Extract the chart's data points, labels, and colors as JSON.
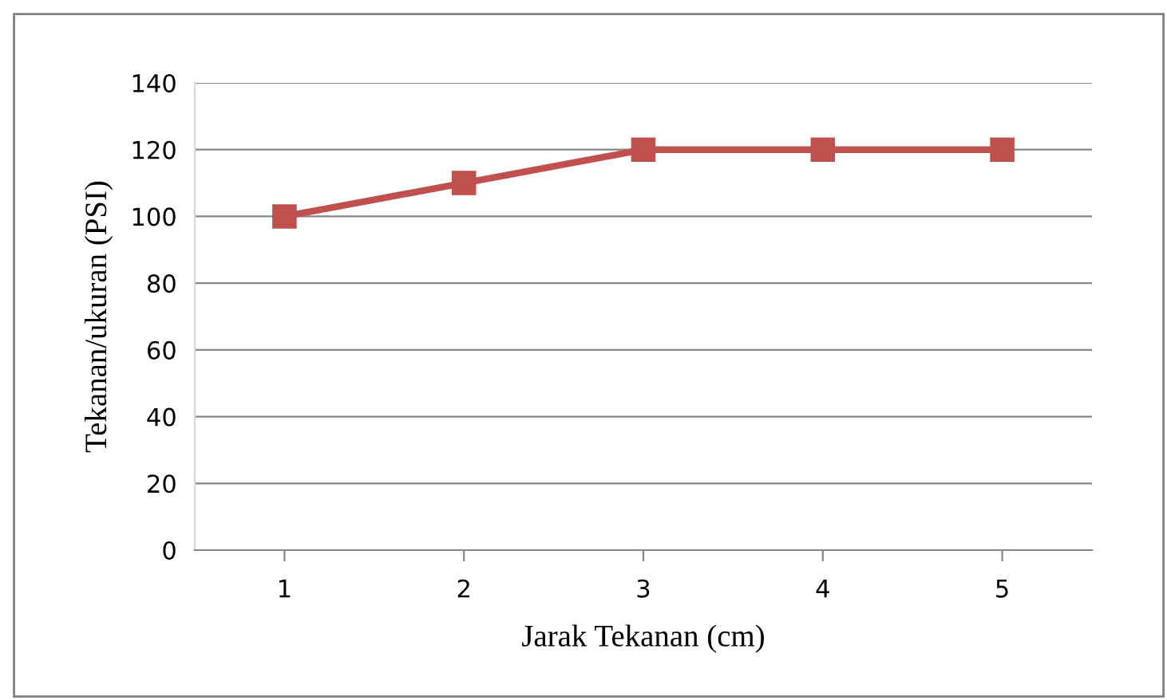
{
  "chart_data": {
    "type": "line",
    "xlabel": "Jarak Tekanan (cm)",
    "ylabel": "Tekanan/ukuran (PSI)",
    "categories": [
      "1",
      "2",
      "3",
      "4",
      "5"
    ],
    "series": [
      {
        "color": "#c0504d",
        "values": [
          100,
          110,
          120,
          120,
          120
        ]
      }
    ],
    "ylim": [
      0,
      140
    ],
    "yticks": [
      0,
      20,
      40,
      60,
      80,
      100,
      120,
      140
    ],
    "grid": "y",
    "marker": "square",
    "line_style": "solid"
  }
}
